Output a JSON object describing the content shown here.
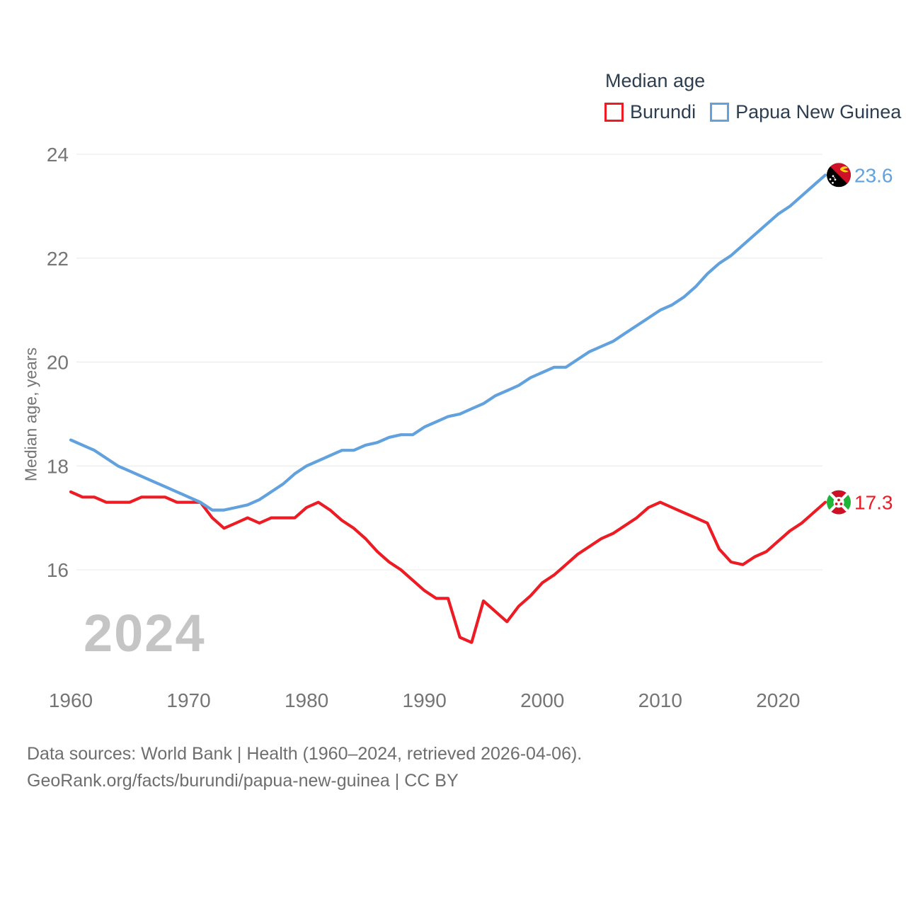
{
  "watermark": "2024",
  "colors": {
    "axis_text": "#757575",
    "gridline": "#e8e8e8",
    "legend_text": "#2d3e50",
    "watermark": "#c5c5c5",
    "footer_text": "#6e6e6e"
  },
  "y_axis": {
    "ticks": [
      24,
      22,
      20,
      18,
      16
    ]
  },
  "x_axis": {
    "ticks": [
      1960,
      1970,
      1980,
      1990,
      2000,
      2010,
      2020
    ]
  },
  "footer": {
    "line1": "Data sources: World Bank | Health (1960–2024, retrieved 2026-04-06).",
    "line2": "GeoRank.org/facts/burundi/papua-new-guinea | CC BY"
  },
  "chart_data": {
    "type": "line",
    "title": "Median age",
    "ylabel": "Median age, years",
    "grid": "horizontal-only",
    "legend_position": "top-right",
    "xlim": [
      1960,
      2024
    ],
    "ylim": [
      14.4,
      24.3
    ],
    "x": [
      1960,
      1961,
      1962,
      1963,
      1964,
      1965,
      1966,
      1967,
      1968,
      1969,
      1970,
      1971,
      1972,
      1973,
      1974,
      1975,
      1976,
      1977,
      1978,
      1979,
      1980,
      1981,
      1982,
      1983,
      1984,
      1985,
      1986,
      1987,
      1988,
      1989,
      1990,
      1991,
      1992,
      1993,
      1994,
      1995,
      1996,
      1997,
      1998,
      1999,
      2000,
      2001,
      2002,
      2003,
      2004,
      2005,
      2006,
      2007,
      2008,
      2009,
      2010,
      2011,
      2012,
      2013,
      2014,
      2015,
      2016,
      2017,
      2018,
      2019,
      2020,
      2021,
      2022,
      2023,
      2024
    ],
    "series": [
      {
        "id": "burundi",
        "name": "Burundi",
        "color": "#ed1c24",
        "end_label": "17.3",
        "values": [
          17.5,
          17.4,
          17.4,
          17.3,
          17.3,
          17.3,
          17.4,
          17.4,
          17.4,
          17.3,
          17.3,
          17.3,
          17.0,
          16.8,
          16.9,
          17.0,
          16.9,
          17.0,
          17.0,
          17.0,
          17.2,
          17.3,
          17.15,
          16.95,
          16.8,
          16.6,
          16.35,
          16.15,
          16.0,
          15.8,
          15.6,
          15.45,
          15.45,
          14.7,
          14.6,
          15.4,
          15.2,
          15.0,
          15.3,
          15.5,
          15.75,
          15.9,
          16.1,
          16.3,
          16.45,
          16.6,
          16.7,
          16.85,
          17.0,
          17.2,
          17.3,
          17.2,
          17.1,
          17.0,
          16.9,
          16.4,
          16.15,
          16.1,
          16.25,
          16.35,
          16.55,
          16.75,
          16.9,
          17.1,
          17.3
        ]
      },
      {
        "id": "papua-new-guinea",
        "name": "Papua New Guinea",
        "color": "#61a1dd",
        "end_label": "23.6",
        "values": [
          18.5,
          18.4,
          18.3,
          18.15,
          18.0,
          17.9,
          17.8,
          17.7,
          17.6,
          17.5,
          17.4,
          17.3,
          17.15,
          17.15,
          17.2,
          17.25,
          17.35,
          17.5,
          17.65,
          17.85,
          18.0,
          18.1,
          18.2,
          18.3,
          18.3,
          18.4,
          18.45,
          18.55,
          18.6,
          18.6,
          18.75,
          18.85,
          18.95,
          19.0,
          19.1,
          19.2,
          19.35,
          19.45,
          19.55,
          19.7,
          19.8,
          19.9,
          19.9,
          20.05,
          20.2,
          20.3,
          20.4,
          20.55,
          20.7,
          20.85,
          21.0,
          21.1,
          21.25,
          21.45,
          21.7,
          21.9,
          22.05,
          22.25,
          22.45,
          22.65,
          22.85,
          23.0,
          23.2,
          23.4,
          23.6
        ]
      }
    ]
  }
}
